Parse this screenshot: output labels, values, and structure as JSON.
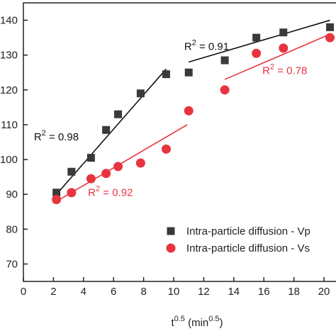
{
  "chart_data": {
    "type": "scatter",
    "x_label": [
      {
        "text": "t"
      },
      {
        "text": "0.5",
        "sup": true
      },
      {
        "text": " (min"
      },
      {
        "text": "0.5",
        "sup": true
      },
      {
        "text": ")"
      }
    ],
    "xlim": [
      0,
      20.8
    ],
    "xticks": [
      0,
      2,
      4,
      6,
      8,
      10,
      12,
      14,
      16,
      18,
      20
    ],
    "ylim": [
      65,
      145
    ],
    "yticks": [
      70,
      80,
      90,
      100,
      110,
      120,
      130,
      140
    ],
    "series": [
      {
        "name": "Intra-particle diffusion - Vp",
        "color": "#3a3a3a",
        "marker": "square",
        "x": [
          2.2,
          3.2,
          4.5,
          5.5,
          6.3,
          7.8,
          9.5,
          11,
          13.4,
          15.5,
          17.3,
          20.4
        ],
        "values": [
          90.5,
          96.5,
          100.5,
          108.5,
          113,
          119,
          124.5,
          125,
          128.5,
          135,
          136.5,
          138
        ]
      },
      {
        "name": "Intra-particle diffusion - Vs",
        "color": "#e8343f",
        "marker": "circle",
        "x": [
          2.2,
          3.2,
          4.5,
          5.5,
          6.3,
          7.8,
          9.5,
          11,
          13.4,
          15.5,
          17.3,
          20.4
        ],
        "values": [
          88.5,
          90.5,
          94.5,
          96,
          98,
          99,
          103,
          114,
          120,
          130.5,
          132,
          135
        ]
      }
    ],
    "fit_lines": [
      {
        "color": "#111111",
        "x": [
          2.2,
          9.5
        ],
        "values": [
          90,
          126
        ]
      },
      {
        "color": "#111111",
        "x": [
          11,
          20.4
        ],
        "values": [
          128,
          140
        ]
      },
      {
        "color": "#e8343f",
        "x": [
          2.2,
          10.9
        ],
        "values": [
          88,
          110
        ]
      },
      {
        "color": "#e8343f",
        "x": [
          13.4,
          20.4
        ],
        "values": [
          123,
          136
        ]
      }
    ],
    "annotations": [
      {
        "prefix": "R",
        "sup": "2",
        "suffix": " = 0.98",
        "color": "#111111",
        "x": 0.7,
        "y": 105.5
      },
      {
        "prefix": "R",
        "sup": "2",
        "suffix": " = 0.91",
        "color": "#111111",
        "x": 10.7,
        "y": 131.5
      },
      {
        "prefix": "R",
        "sup": "2",
        "suffix": " = 0.92",
        "color": "#e8343f",
        "x": 4.3,
        "y": 89.5
      },
      {
        "prefix": "R",
        "sup": "2",
        "suffix": " = 0.78",
        "color": "#e8343f",
        "x": 15.9,
        "y": 124.5
      }
    ],
    "legend": "lower right"
  }
}
